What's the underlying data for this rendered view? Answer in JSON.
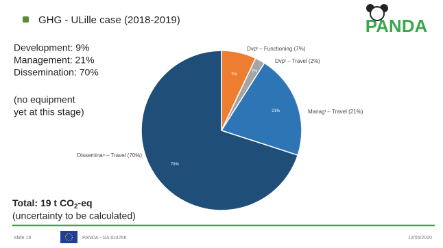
{
  "slide": {
    "title": "GHG - ULille case (2018-2019)",
    "logo": "PANDA",
    "summary": [
      "Development: 9%",
      "Management: 21%",
      "Dissemination: 70%"
    ],
    "note": [
      "(no equipment",
      "yet at this stage)"
    ],
    "total": [
      "Total: 19 t CO",
      "2",
      "-eq"
    ],
    "uncertainty": "(uncertainty to be calculated)",
    "footer": {
      "slide": "Slide 19",
      "project": "PANDA - GA 824256",
      "date": "12/05/2020"
    }
  },
  "chart_data": {
    "type": "pie",
    "categories": [
      "Dvpᵗ – Functioning (7%)",
      "Dvpᵗ – Travel (2%)",
      "Managᵗ – Travel (21%)",
      "Disseminaᵒ – Travel (70%)"
    ],
    "values": [
      7,
      2,
      21,
      70
    ],
    "value_labels": [
      "7%",
      "2%",
      "21%",
      "70%"
    ],
    "colors": [
      "#ed7d31",
      "#a5a5a5",
      "#2e75b6",
      "#1f4e79"
    ]
  }
}
